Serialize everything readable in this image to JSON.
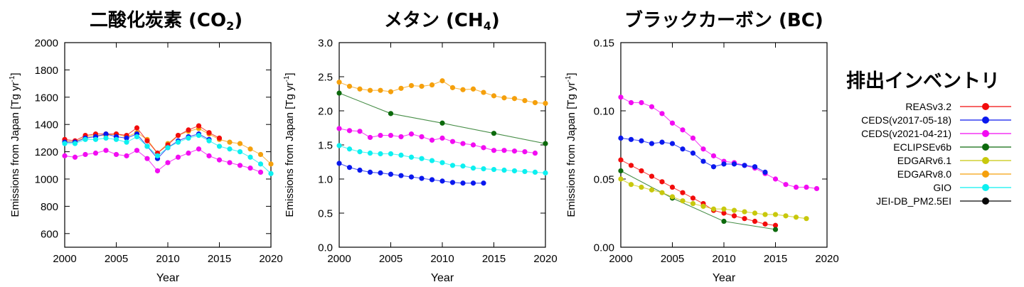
{
  "legend_title": "排出インベントリ",
  "legend": [
    {
      "label": "REASv3.2",
      "color": "#f20c0c"
    },
    {
      "label": "CEDS(v2017-05-18)",
      "color": "#0a18ee"
    },
    {
      "label": "CEDS(v2021-04-21)",
      "color": "#f20cf2"
    },
    {
      "label": "ECLIPSEv6b",
      "color": "#0c6a0c"
    },
    {
      "label": "EDGARv6.1",
      "color": "#c8c80c"
    },
    {
      "label": "EDGARv8.0",
      "color": "#f5a00c"
    },
    {
      "label": "GIO",
      "color": "#0cf0f0"
    },
    {
      "label": "JEI-DB_PM2.5EI",
      "color": "#080808"
    }
  ],
  "panels": [
    {
      "title_main": "二酸化炭素 (CO",
      "title_sub": "2",
      "title_end": ")"
    },
    {
      "title_main": "メタン (CH",
      "title_sub": "4",
      "title_end": ")"
    },
    {
      "title_main": "ブラックカーボン (BC)",
      "title_sub": "",
      "title_end": ""
    }
  ],
  "chart_data": [
    {
      "type": "line",
      "title": "二酸化炭素 (CO2)",
      "xlabel": "Year",
      "ylabel": "Emissions from Japan [Tg yr-1]",
      "xlim": [
        2000,
        2020
      ],
      "ylim": [
        500,
        2000
      ],
      "xticks": [
        2000,
        2005,
        2010,
        2015,
        2020
      ],
      "yticks": [
        600,
        800,
        1000,
        1200,
        1400,
        1600,
        1800,
        2000
      ],
      "ytick_labels": [
        "600",
        "800",
        "1000",
        "1200",
        "1400",
        "1600",
        "1800",
        "2000"
      ],
      "series": [
        {
          "name": "EDGARv8.0",
          "x": [
            2000,
            2001,
            2002,
            2003,
            2004,
            2005,
            2006,
            2007,
            2008,
            2009,
            2010,
            2011,
            2012,
            2013,
            2014,
            2015,
            2016,
            2017,
            2018,
            2019,
            2020
          ],
          "y": [
            1280,
            1270,
            1310,
            1320,
            1320,
            1330,
            1310,
            1340,
            1290,
            1190,
            1260,
            1320,
            1350,
            1370,
            1330,
            1290,
            1270,
            1260,
            1220,
            1180,
            1110
          ]
        },
        {
          "name": "REASv3.2",
          "x": [
            2000,
            2001,
            2002,
            2003,
            2004,
            2005,
            2006,
            2007,
            2008,
            2009,
            2010,
            2011,
            2012,
            2013,
            2014,
            2015
          ],
          "y": [
            1290,
            1280,
            1320,
            1330,
            1330,
            1330,
            1320,
            1375,
            1280,
            1190,
            1250,
            1320,
            1360,
            1390,
            1340,
            1300
          ]
        },
        {
          "name": "CEDS(v2017-05-18)",
          "x": [
            2000,
            2001,
            2002,
            2003,
            2004,
            2005,
            2006,
            2007,
            2008,
            2009,
            2010,
            2011,
            2012,
            2013,
            2014
          ],
          "y": [
            1270,
            1270,
            1300,
            1310,
            1330,
            1310,
            1300,
            1330,
            1240,
            1150,
            1230,
            1280,
            1310,
            1330,
            1290
          ]
        },
        {
          "name": "GIO",
          "x": [
            2000,
            2001,
            2002,
            2003,
            2004,
            2005,
            2006,
            2007,
            2008,
            2009,
            2010,
            2011,
            2012,
            2013,
            2014,
            2015,
            2016,
            2017,
            2018,
            2019,
            2020
          ],
          "y": [
            1260,
            1260,
            1290,
            1290,
            1300,
            1290,
            1270,
            1310,
            1240,
            1170,
            1230,
            1270,
            1300,
            1320,
            1280,
            1240,
            1220,
            1200,
            1160,
            1110,
            1040
          ]
        },
        {
          "name": "CEDS(v2021-04-21)",
          "x": [
            2000,
            2001,
            2002,
            2003,
            2004,
            2005,
            2006,
            2007,
            2008,
            2009,
            2010,
            2011,
            2012,
            2013,
            2014,
            2015,
            2016,
            2017,
            2018,
            2019
          ],
          "y": [
            1170,
            1160,
            1180,
            1190,
            1210,
            1180,
            1170,
            1210,
            1150,
            1060,
            1120,
            1160,
            1190,
            1220,
            1170,
            1140,
            1120,
            1100,
            1080,
            1050
          ]
        }
      ]
    },
    {
      "type": "line",
      "title": "メタン (CH4)",
      "xlabel": "Year",
      "ylabel": "Emissions from Japan [Tg yr-1]",
      "xlim": [
        2000,
        2020
      ],
      "ylim": [
        0,
        3.0
      ],
      "xticks": [
        2000,
        2005,
        2010,
        2015,
        2020
      ],
      "yticks": [
        0,
        0.5,
        1.0,
        1.5,
        2.0,
        2.5,
        3.0
      ],
      "ytick_labels": [
        "0.0",
        "0.5",
        "1.0",
        "1.5",
        "2.0",
        "2.5",
        "3.0"
      ],
      "series": [
        {
          "name": "EDGARv8.0",
          "x": [
            2000,
            2001,
            2002,
            2003,
            2004,
            2005,
            2006,
            2007,
            2008,
            2009,
            2010,
            2011,
            2012,
            2013,
            2014,
            2015,
            2016,
            2017,
            2018,
            2019,
            2020
          ],
          "y": [
            2.42,
            2.36,
            2.32,
            2.3,
            2.3,
            2.28,
            2.33,
            2.37,
            2.36,
            2.38,
            2.44,
            2.34,
            2.31,
            2.32,
            2.27,
            2.22,
            2.19,
            2.18,
            2.15,
            2.12,
            2.11
          ]
        },
        {
          "name": "ECLIPSEv6b",
          "x": [
            2000,
            2005,
            2010,
            2015,
            2020
          ],
          "y": [
            2.26,
            1.96,
            1.82,
            1.67,
            1.52
          ]
        },
        {
          "name": "CEDS(v2021-04-21)",
          "x": [
            2000,
            2001,
            2002,
            2003,
            2004,
            2005,
            2006,
            2007,
            2008,
            2009,
            2010,
            2011,
            2012,
            2013,
            2014,
            2015,
            2016,
            2017,
            2018,
            2019
          ],
          "y": [
            1.74,
            1.71,
            1.7,
            1.61,
            1.64,
            1.64,
            1.62,
            1.66,
            1.62,
            1.57,
            1.6,
            1.55,
            1.52,
            1.5,
            1.46,
            1.42,
            1.42,
            1.41,
            1.4,
            1.38
          ]
        },
        {
          "name": "GIO",
          "x": [
            2000,
            2001,
            2002,
            2003,
            2004,
            2005,
            2006,
            2007,
            2008,
            2009,
            2010,
            2011,
            2012,
            2013,
            2014,
            2015,
            2016,
            2017,
            2018,
            2019,
            2020
          ],
          "y": [
            1.49,
            1.44,
            1.4,
            1.38,
            1.37,
            1.37,
            1.35,
            1.32,
            1.3,
            1.27,
            1.24,
            1.2,
            1.19,
            1.16,
            1.15,
            1.14,
            1.13,
            1.12,
            1.11,
            1.1,
            1.09
          ]
        },
        {
          "name": "CEDS(v2017-05-18)",
          "x": [
            2000,
            2001,
            2002,
            2003,
            2004,
            2005,
            2006,
            2007,
            2008,
            2009,
            2010,
            2011,
            2012,
            2013,
            2014
          ],
          "y": [
            1.23,
            1.17,
            1.13,
            1.1,
            1.09,
            1.07,
            1.05,
            1.03,
            1.01,
            0.99,
            0.97,
            0.95,
            0.94,
            0.94,
            0.94
          ]
        }
      ]
    },
    {
      "type": "line",
      "title": "ブラックカーボン (BC)",
      "xlabel": "Year",
      "ylabel": "Emissions from Japan [Tg yr-1]",
      "xlim": [
        2000,
        2020
      ],
      "ylim": [
        0,
        0.15
      ],
      "xticks": [
        2000,
        2005,
        2010,
        2015,
        2020
      ],
      "yticks": [
        0,
        0.05,
        0.1,
        0.15
      ],
      "ytick_labels": [
        "0.00",
        "0.05",
        "0.10",
        "0.15"
      ],
      "series": [
        {
          "name": "CEDS(v2021-04-21)",
          "x": [
            2000,
            2001,
            2002,
            2003,
            2004,
            2005,
            2006,
            2007,
            2008,
            2009,
            2010,
            2011,
            2012,
            2013,
            2014,
            2015,
            2016,
            2017,
            2018,
            2019
          ],
          "y": [
            0.11,
            0.106,
            0.106,
            0.103,
            0.098,
            0.091,
            0.086,
            0.08,
            0.072,
            0.067,
            0.063,
            0.062,
            0.06,
            0.058,
            0.054,
            0.05,
            0.046,
            0.044,
            0.044,
            0.043
          ]
        },
        {
          "name": "CEDS(v2017-05-18)",
          "x": [
            2000,
            2001,
            2002,
            2003,
            2004,
            2005,
            2006,
            2007,
            2008,
            2009,
            2010,
            2011,
            2012,
            2013,
            2014
          ],
          "y": [
            0.08,
            0.079,
            0.078,
            0.076,
            0.077,
            0.076,
            0.072,
            0.069,
            0.063,
            0.059,
            0.061,
            0.061,
            0.06,
            0.059,
            0.055
          ]
        },
        {
          "name": "REASv3.2",
          "x": [
            2000,
            2001,
            2002,
            2003,
            2004,
            2005,
            2006,
            2007,
            2008,
            2009,
            2010,
            2011,
            2012,
            2013,
            2014,
            2015
          ],
          "y": [
            0.064,
            0.06,
            0.056,
            0.052,
            0.048,
            0.044,
            0.04,
            0.036,
            0.032,
            0.027,
            0.025,
            0.023,
            0.021,
            0.019,
            0.017,
            0.016
          ]
        },
        {
          "name": "ECLIPSEv6b",
          "x": [
            2000,
            2005,
            2010,
            2015
          ],
          "y": [
            0.056,
            0.036,
            0.019,
            0.013
          ]
        },
        {
          "name": "EDGARv6.1",
          "x": [
            2000,
            2001,
            2002,
            2003,
            2004,
            2005,
            2006,
            2007,
            2008,
            2009,
            2010,
            2011,
            2012,
            2013,
            2014,
            2015,
            2016,
            2017,
            2018
          ],
          "y": [
            0.05,
            0.046,
            0.044,
            0.042,
            0.04,
            0.037,
            0.034,
            0.032,
            0.03,
            0.028,
            0.028,
            0.027,
            0.026,
            0.025,
            0.024,
            0.024,
            0.023,
            0.022,
            0.021
          ]
        }
      ]
    }
  ]
}
